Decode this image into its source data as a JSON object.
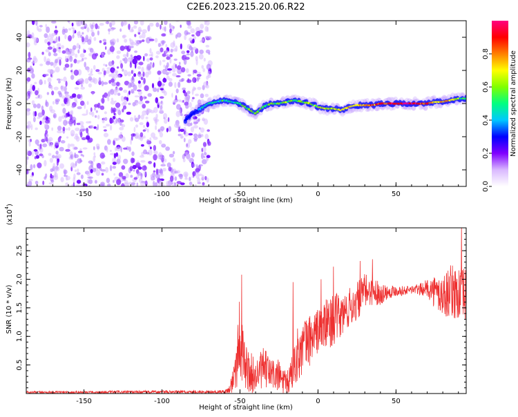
{
  "title": "C2E6.2023.215.20.06.R22",
  "chart_data": [
    {
      "type": "heatmap",
      "name": "spectrogram",
      "xlabel": "Height of straight line (km)",
      "ylabel": "Frequency (Hz)",
      "xlim": [
        -187,
        95
      ],
      "ylim": [
        -50,
        50
      ],
      "xticks": [
        -150,
        -100,
        -50,
        0,
        50
      ],
      "yticks": [
        -40,
        -20,
        0,
        20,
        40
      ],
      "colorbar": {
        "label": "Normalized spectral amplitude",
        "range": [
          0,
          1
        ],
        "ticks": [
          0.0,
          0.2,
          0.4,
          0.6,
          0.8
        ],
        "colors": [
          "#ffffff",
          "#d9b8ff",
          "#8000ff",
          "#0000ff",
          "#00c8ff",
          "#00ff80",
          "#80ff00",
          "#ffff00",
          "#ff8000",
          "#ff0000",
          "#ff0080"
        ]
      },
      "noise_region_x": [
        -187,
        -72
      ],
      "signal_track": {
        "x": [
          -85,
          -80,
          -75,
          -70,
          -65,
          -60,
          -55,
          -50,
          -45,
          -40,
          -35,
          -30,
          -25,
          -20,
          -15,
          -10,
          -5,
          0,
          5,
          10,
          15,
          20,
          25,
          30,
          35,
          40,
          45,
          50,
          55,
          60,
          65,
          70,
          75,
          80,
          85,
          90,
          95
        ],
        "freq": [
          -10,
          -6,
          -3,
          0,
          1,
          2,
          1,
          0,
          -3,
          -6,
          -2,
          0,
          0,
          1,
          2,
          1,
          0,
          -2,
          -3,
          -3,
          -4,
          -2,
          -1,
          -1,
          -1,
          0,
          0,
          0,
          0,
          0,
          0,
          0,
          1,
          1,
          2,
          3,
          3
        ],
        "amplitude": [
          0.3,
          0.35,
          0.4,
          0.45,
          0.45,
          0.5,
          0.45,
          0.55,
          0.55,
          0.6,
          0.5,
          0.55,
          0.55,
          0.6,
          0.55,
          0.55,
          0.6,
          0.6,
          0.7,
          0.65,
          0.7,
          0.75,
          0.75,
          0.8,
          0.8,
          0.85,
          0.85,
          0.9,
          0.95,
          0.95,
          0.9,
          0.85,
          0.7,
          0.7,
          0.75,
          0.6,
          0.5
        ]
      }
    },
    {
      "type": "line",
      "name": "snr",
      "xlabel": "Height of straight line (km)",
      "ylabel": "SNR (10 * v/v)",
      "scale_label": "(x10",
      "scale_exponent": "4",
      "scale_close": ")",
      "xlim": [
        -187,
        95
      ],
      "ylim": [
        0,
        2.9
      ],
      "xticks": [
        -150,
        -100,
        -50,
        0,
        50
      ],
      "yticks": [
        0.5,
        1.0,
        1.5,
        2.0,
        2.5
      ],
      "ytick_labels": [
        "0.5",
        "1.0",
        "1.5",
        "2.0",
        "2.5"
      ],
      "color": "#ee3030",
      "envelope": {
        "x": [
          -187,
          -60,
          -57,
          -55,
          -52,
          -50,
          -48,
          -45,
          -40,
          -35,
          -30,
          -25,
          -20,
          -17,
          -15,
          -10,
          -5,
          0,
          5,
          10,
          15,
          20,
          25,
          30,
          35,
          40,
          45,
          50,
          55,
          60,
          65,
          70,
          75,
          80,
          85,
          90,
          95
        ],
        "center": [
          0.02,
          0.03,
          0.06,
          0.2,
          0.6,
          1.1,
          0.6,
          0.4,
          0.3,
          0.45,
          0.35,
          0.3,
          0.15,
          0.35,
          0.6,
          0.8,
          0.95,
          1.1,
          1.2,
          1.3,
          1.35,
          1.5,
          1.6,
          1.8,
          1.8,
          1.75,
          1.78,
          1.8,
          1.8,
          1.82,
          1.82,
          1.85,
          1.78,
          1.7,
          1.8,
          1.75,
          1.7
        ],
        "spread": [
          0.02,
          0.03,
          0.06,
          0.25,
          0.5,
          0.8,
          0.5,
          0.4,
          0.3,
          0.35,
          0.3,
          0.3,
          0.2,
          0.35,
          0.45,
          0.5,
          0.45,
          0.4,
          0.45,
          0.45,
          0.4,
          0.35,
          0.35,
          0.3,
          0.25,
          0.2,
          0.12,
          0.1,
          0.08,
          0.08,
          0.1,
          0.15,
          0.3,
          0.4,
          0.45,
          0.5,
          0.5
        ]
      },
      "peaks": [
        {
          "x": -49,
          "y": 2.08
        },
        {
          "x": -16,
          "y": 1.95
        },
        {
          "x": 2,
          "y": 2.0
        },
        {
          "x": 10,
          "y": 2.22
        },
        {
          "x": 27,
          "y": 2.32
        },
        {
          "x": 35,
          "y": 2.35
        },
        {
          "x": 92,
          "y": 2.9
        }
      ]
    }
  ]
}
